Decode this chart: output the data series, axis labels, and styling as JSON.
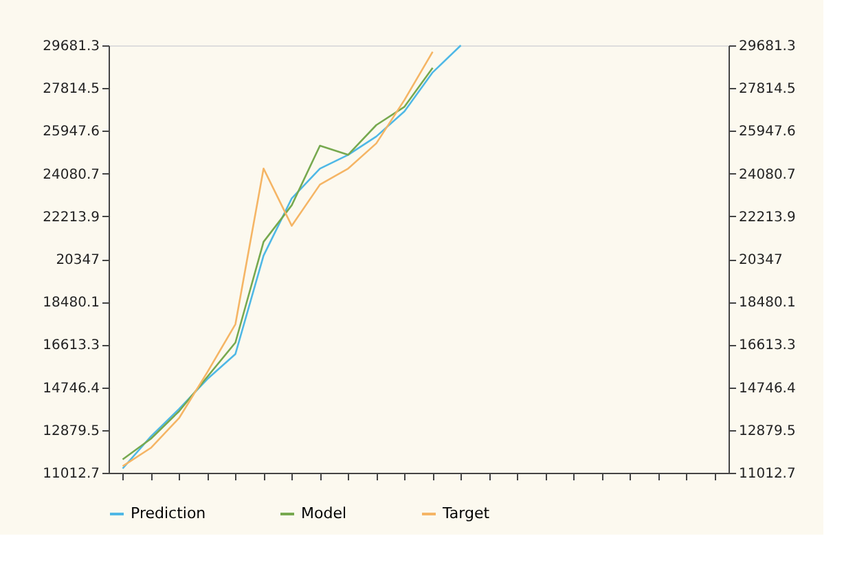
{
  "chart_data": {
    "type": "line",
    "categories": [
      null,
      null,
      null,
      null,
      null,
      null,
      null,
      null,
      null,
      null,
      null,
      null,
      null,
      null,
      null,
      null,
      null,
      null,
      null,
      null,
      null,
      null
    ],
    "series": [
      {
        "name": "Prediction",
        "color": "#4fb8e6",
        "values": [
          11200,
          12600,
          13800,
          15100,
          16200,
          20500,
          23000,
          24300,
          24900,
          25700,
          26800,
          28500,
          29681.3,
          null,
          null,
          null,
          null,
          null,
          null,
          null,
          null,
          null
        ]
      },
      {
        "name": "Model",
        "color": "#77a94f",
        "values": [
          11600,
          12500,
          13700,
          15200,
          16700,
          21100,
          22700,
          25300,
          24900,
          26200,
          27000,
          28700,
          null,
          null,
          null,
          null,
          null,
          null,
          null,
          null,
          null,
          null
        ]
      },
      {
        "name": "Target",
        "color": "#f5b565",
        "values": [
          11300,
          12100,
          13400,
          15400,
          17500,
          24300,
          21800,
          23600,
          24300,
          25400,
          27300,
          29400,
          null,
          null,
          null,
          null,
          null,
          null,
          null,
          null,
          null,
          null
        ]
      }
    ],
    "ylim": [
      11012.7,
      29681.3
    ],
    "yticks": [
      11012.7,
      12879.5,
      14746.4,
      16613.3,
      18480.1,
      20347,
      22213.9,
      24080.7,
      25947.6,
      27814.5,
      29681.3
    ],
    "y2lim": [
      11012.7,
      29681.3
    ],
    "y2ticks": [
      11012.7,
      12879.5,
      14746.4,
      16613.3,
      18480.1,
      20347,
      22213.9,
      24080.7,
      25947.6,
      27814.5,
      29681.3
    ],
    "tick_labels": "y",
    "grid": false,
    "legend": "bottom",
    "marker": "none",
    "line_style": "solid"
  }
}
